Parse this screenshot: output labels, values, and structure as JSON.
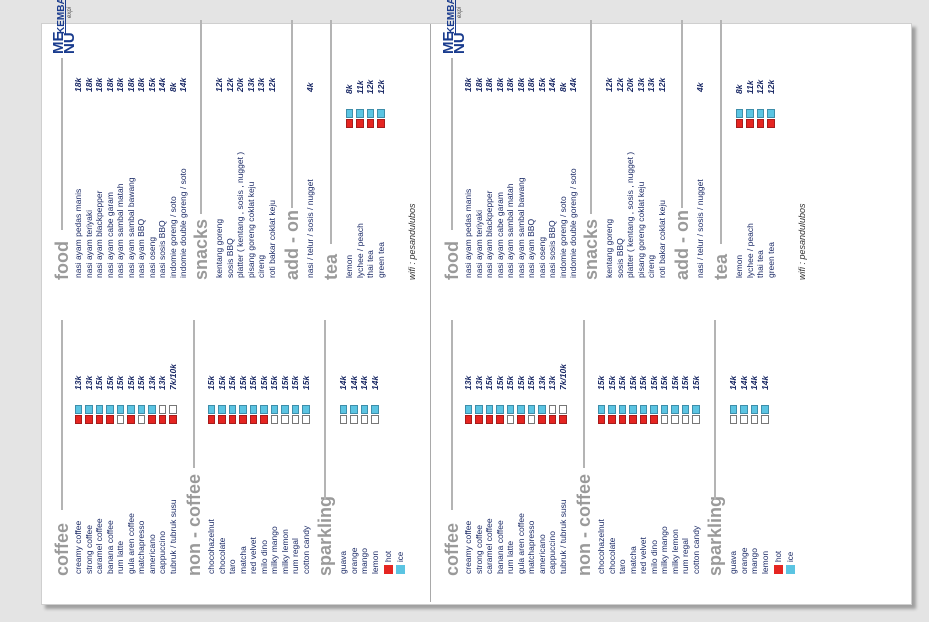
{
  "brand": {
    "menu_word_1": "ME",
    "menu_word_2": "NU",
    "name": "KEMBAR",
    "tag": "expi"
  },
  "coffee": {
    "title": "coffee",
    "items": [
      {
        "name": "creamy coffee",
        "price": "13k"
      },
      {
        "name": "strong coffee",
        "price": "13k"
      },
      {
        "name": "caramel coffee",
        "price": "15k"
      },
      {
        "name": "banana coffee",
        "price": "15k"
      },
      {
        "name": "rum latte",
        "price": "15k"
      },
      {
        "name": "gula aren coffee",
        "price": "15k"
      },
      {
        "name": "matchapresso",
        "price": "15k"
      },
      {
        "name": "americano",
        "price": "13k"
      },
      {
        "name": "cappuccino",
        "price": "13k"
      },
      {
        "name": "tubruk / tubruk susu",
        "price": "7k/10k"
      }
    ]
  },
  "non_coffee": {
    "title": "non - coffee",
    "items": [
      {
        "name": "chocohazelnut",
        "price": "15k"
      },
      {
        "name": "chocolate",
        "price": "15k"
      },
      {
        "name": "taro",
        "price": "15k"
      },
      {
        "name": "matcha",
        "price": "15k"
      },
      {
        "name": "red velvet",
        "price": "15k"
      },
      {
        "name": "milo dino",
        "price": "15k"
      },
      {
        "name": "milky mango",
        "price": "15k"
      },
      {
        "name": "milky lemon",
        "price": "15k"
      },
      {
        "name": "rum regal",
        "price": "15k"
      },
      {
        "name": "cotton candy",
        "price": "15k"
      }
    ]
  },
  "sparkling": {
    "title": "sparkling",
    "items": [
      {
        "name": "guava",
        "price": "14k"
      },
      {
        "name": "orange",
        "price": "14k"
      },
      {
        "name": "mango",
        "price": "14k"
      },
      {
        "name": "lemon",
        "price": "14k"
      }
    ]
  },
  "legend": {
    "hot": "hot",
    "ice": "ice"
  },
  "food": {
    "title": "food",
    "items": [
      {
        "name": "nasi ayam pedas manis",
        "price": "18k"
      },
      {
        "name": "nasi ayam teriyaki",
        "price": "18k"
      },
      {
        "name": "nasi ayam blackpepper",
        "price": "18k"
      },
      {
        "name": "nasi ayam cabe garam",
        "price": "18k"
      },
      {
        "name": "nasi ayam sambal matah",
        "price": "18k"
      },
      {
        "name": "nasi ayam sambal bawang",
        "price": "18k"
      },
      {
        "name": "nasi ayam BBQ",
        "price": "18k"
      },
      {
        "name": "nasi oseng",
        "price": "15k"
      },
      {
        "name": "nasi sosis BBQ",
        "price": "14k"
      },
      {
        "name": "indomie goreng / soto",
        "price": "8k"
      },
      {
        "name": "indomie double goreng / soto",
        "price": "14k"
      }
    ]
  },
  "snacks": {
    "title": "snacks",
    "items": [
      {
        "name": "kentang goreng",
        "price": "12k"
      },
      {
        "name": "sosis BBQ",
        "price": "12k"
      },
      {
        "name": "platter ( kentang , sosis , nugget )",
        "price": "20k"
      },
      {
        "name": "pisang goreng coklat keju",
        "price": "13k"
      },
      {
        "name": "cireng",
        "price": "13k"
      },
      {
        "name": "roti bakar coklat keju",
        "price": "12k"
      }
    ]
  },
  "add_on": {
    "title": "add - on",
    "items": [
      {
        "name": "nasi / telur / sosis / nugget",
        "price": "4k"
      }
    ]
  },
  "tea": {
    "title": "tea",
    "items": [
      {
        "name": "lemon",
        "price": "8k"
      },
      {
        "name": "lychee / peach",
        "price": "11k"
      },
      {
        "name": "thai tea",
        "price": "12k"
      },
      {
        "name": "green tea",
        "price": "12k"
      }
    ]
  },
  "wifi": "wifi : pesandulubos",
  "options": {
    "coffee": [
      "hi",
      "hi",
      "hi",
      "hi",
      "i",
      "hi",
      "i",
      "hi",
      "hn",
      "hn"
    ],
    "non_coffee": [
      "hi",
      "hi",
      "hi",
      "hi",
      "hi",
      "hi",
      "i",
      "i",
      "i",
      "i"
    ],
    "sparkling": [
      "i",
      "i",
      "i",
      "i"
    ],
    "tea": [
      "hi",
      "hi",
      "hi",
      "hi"
    ]
  },
  "colors": {
    "hot": "#e52521",
    "ice": "#5bc4e2",
    "title": "#9a9a9a",
    "text": "#1b2a66",
    "brand": "#1a3c8e"
  }
}
